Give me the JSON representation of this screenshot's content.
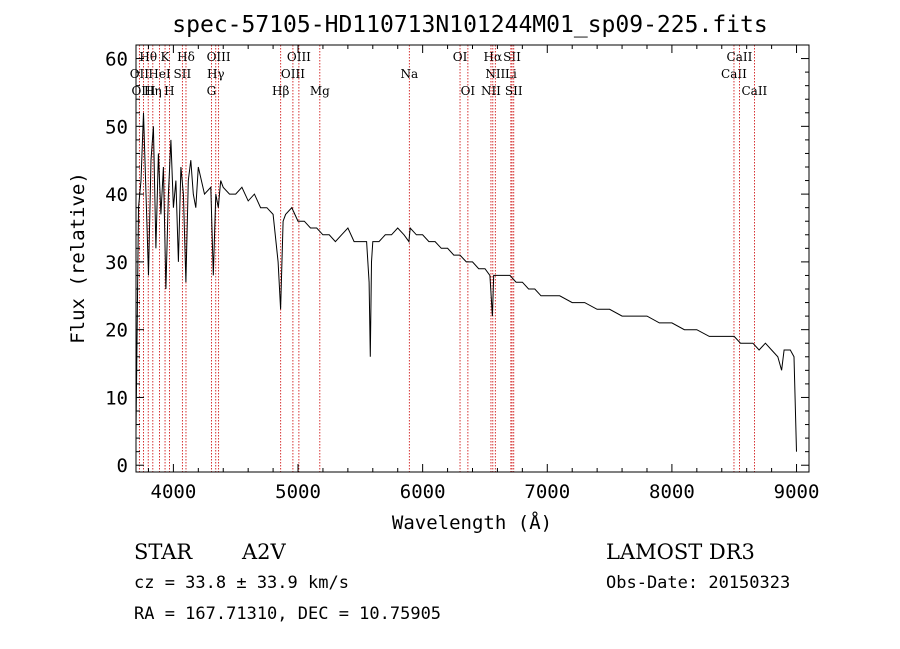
{
  "chart_data": {
    "type": "line",
    "title": "spec-57105-HD110713N101244M01_sp09-225.fits",
    "xlabel": "Wavelength (Å)",
    "ylabel": "Flux (relative)",
    "xlim": [
      3700,
      9100
    ],
    "ylim": [
      -1,
      62
    ],
    "xticks": [
      4000,
      5000,
      6000,
      7000,
      8000,
      9000
    ],
    "xtick_labels": [
      "4000",
      "5000",
      "6000",
      "7000",
      "8000",
      "9000"
    ],
    "yticks": [
      0,
      10,
      20,
      30,
      40,
      50,
      60
    ],
    "ytick_labels": [
      "0",
      "10",
      "20",
      "30",
      "40",
      "50",
      "60"
    ],
    "series": [
      {
        "name": "spectrum",
        "x": [
          3700,
          3720,
          3740,
          3760,
          3780,
          3800,
          3820,
          3840,
          3860,
          3880,
          3900,
          3920,
          3940,
          3960,
          3980,
          4000,
          4020,
          4040,
          4060,
          4080,
          4100,
          4120,
          4140,
          4160,
          4180,
          4200,
          4250,
          4300,
          4320,
          4340,
          4360,
          4380,
          4400,
          4450,
          4500,
          4550,
          4600,
          4650,
          4700,
          4750,
          4800,
          4840,
          4860,
          4880,
          4900,
          4950,
          5000,
          5050,
          5100,
          5150,
          5200,
          5250,
          5300,
          5350,
          5400,
          5450,
          5500,
          5550,
          5570,
          5580,
          5590,
          5600,
          5650,
          5700,
          5750,
          5800,
          5850,
          5890,
          5900,
          5950,
          6000,
          6050,
          6100,
          6150,
          6200,
          6250,
          6300,
          6350,
          6400,
          6450,
          6500,
          6540,
          6560,
          6570,
          6580,
          6600,
          6650,
          6700,
          6750,
          6800,
          6850,
          6900,
          6950,
          7000,
          7100,
          7200,
          7300,
          7400,
          7500,
          7600,
          7700,
          7800,
          7900,
          8000,
          8100,
          8200,
          8300,
          8400,
          8450,
          8500,
          8550,
          8600,
          8650,
          8700,
          8750,
          8800,
          8850,
          8880,
          8900,
          8950,
          8980,
          9000
        ],
        "values": [
          5,
          38,
          42,
          52,
          40,
          28,
          45,
          50,
          32,
          46,
          37,
          44,
          26,
          40,
          48,
          38,
          42,
          30,
          44,
          40,
          27,
          42,
          45,
          40,
          38,
          44,
          40,
          41,
          28,
          40,
          38,
          42,
          41,
          40,
          40,
          41,
          39,
          40,
          38,
          38,
          37,
          30,
          23,
          36,
          37,
          38,
          36,
          36,
          35,
          35,
          34,
          34,
          33,
          34,
          35,
          33,
          33,
          33,
          27,
          16,
          30,
          33,
          33,
          34,
          34,
          35,
          34,
          33,
          35,
          34,
          34,
          33,
          33,
          32,
          32,
          31,
          31,
          30,
          30,
          29,
          29,
          28,
          22,
          28,
          28,
          28,
          28,
          28,
          27,
          27,
          26,
          26,
          25,
          25,
          25,
          24,
          24,
          23,
          23,
          22,
          22,
          22,
          21,
          21,
          20,
          20,
          19,
          19,
          19,
          19,
          18,
          18,
          18,
          17,
          18,
          17,
          16,
          14,
          17,
          17,
          16,
          2
        ]
      }
    ],
    "lines": [
      {
        "name": "H alpha",
        "x": 6563,
        "labels": [
          "Hα"
        ],
        "row": 0
      },
      {
        "name": "NII",
        "x": 6583,
        "labels": [
          "NII"
        ],
        "row": 1
      },
      {
        "name": "NII b",
        "x": 6548,
        "labels": [
          "NII"
        ],
        "row": 2
      },
      {
        "name": "Li",
        "x": 6708,
        "labels": [
          "Li"
        ],
        "row": 1
      },
      {
        "name": "SII",
        "x": 6717,
        "labels": [
          "SII"
        ],
        "row": 0
      },
      {
        "name": "SII b",
        "x": 6731,
        "labels": [
          "SII"
        ],
        "row": 2
      },
      {
        "name": "OI 6300",
        "x": 6300,
        "labels": [
          "OI"
        ],
        "row": 0
      },
      {
        "name": "OI 6363",
        "x": 6363,
        "labels": [
          "OI"
        ],
        "row": 2
      },
      {
        "name": "Na",
        "x": 5893,
        "labels": [
          "Na"
        ],
        "row": 1
      },
      {
        "name": "Mg",
        "x": 5175,
        "labels": [
          "Mg"
        ],
        "row": 2
      },
      {
        "name": "OIII a",
        "x": 5007,
        "labels": [
          "OIII"
        ],
        "row": 0
      },
      {
        "name": "OIII b",
        "x": 4959,
        "labels": [
          "OIII"
        ],
        "row": 1
      },
      {
        "name": "H beta",
        "x": 4861,
        "labels": [
          "Hβ"
        ],
        "row": 2
      },
      {
        "name": "OIII c",
        "x": 4363,
        "labels": [
          "OIII"
        ],
        "row": 0
      },
      {
        "name": "H gamma",
        "x": 4340,
        "labels": [
          "Hγ"
        ],
        "row": 1
      },
      {
        "name": "G",
        "x": 4305,
        "labels": [
          "G"
        ],
        "row": 2
      },
      {
        "name": "H delta",
        "x": 4101,
        "labels": [
          "Hδ"
        ],
        "row": 0
      },
      {
        "name": "SII 4072",
        "x": 4072,
        "labels": [
          "SII"
        ],
        "row": 1
      },
      {
        "name": "H",
        "x": 3968,
        "labels": [
          "H"
        ],
        "row": 2
      },
      {
        "name": "K",
        "x": 3933,
        "labels": [
          "K"
        ],
        "row": 0
      },
      {
        "name": "HeI",
        "x": 3889,
        "labels": [
          "HeI"
        ],
        "row": 1
      },
      {
        "name": "H eta",
        "x": 3835,
        "labels": [
          "Hη"
        ],
        "row": 2
      },
      {
        "name": "H theta",
        "x": 3798,
        "labels": [
          "Hθ"
        ],
        "row": 0
      },
      {
        "name": "OII",
        "x": 3727,
        "labels": [
          "OII"
        ],
        "row": 1
      },
      {
        "name": "OIII 3760",
        "x": 3760,
        "labels": [
          "OIII"
        ],
        "row": 2
      },
      {
        "name": "CaII 8498",
        "x": 8498,
        "labels": [
          "CaII"
        ],
        "row": 1
      },
      {
        "name": "CaII 8542",
        "x": 8542,
        "labels": [
          "CaII"
        ],
        "row": 0
      },
      {
        "name": "CaII 8662",
        "x": 8662,
        "labels": [
          "CaII"
        ],
        "row": 2
      }
    ]
  },
  "info": {
    "class": "STAR",
    "subclass": "A2V",
    "survey": "LAMOST DR3",
    "cz": "cz = 33.8 ± 33.9 km/s",
    "obs_date": "Obs-Date: 20150323",
    "radec": "RA = 167.71310, DEC =  10.75905"
  },
  "colors": {
    "line": "#000000",
    "marker": "#cc0000"
  }
}
